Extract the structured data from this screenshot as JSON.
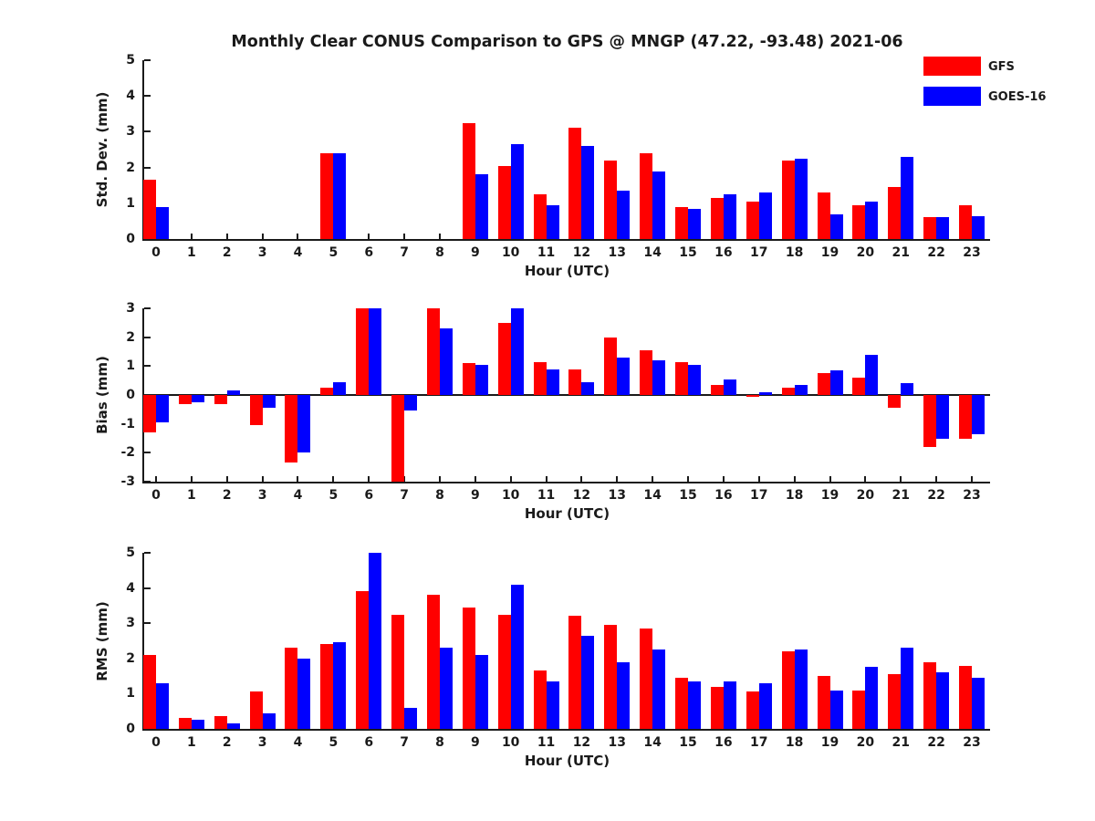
{
  "title": "Monthly Clear CONUS Comparison to GPS @ MNGP (47.22, -93.48) 2021-06",
  "legend": {
    "position": "top-right",
    "items": [
      {
        "label": "GFS",
        "color": "#ff0000"
      },
      {
        "label": "GOES-16",
        "color": "#0000ff"
      }
    ]
  },
  "chart_data": [
    {
      "type": "bar",
      "panel": "std-dev",
      "ylabel": "Std. Dev. (mm)",
      "xlabel": "Hour (UTC)",
      "ylim": [
        0,
        5
      ],
      "yticks": [
        0,
        1,
        2,
        3,
        4,
        5
      ],
      "grid": false,
      "categories": [
        0,
        1,
        2,
        3,
        4,
        5,
        6,
        7,
        8,
        9,
        10,
        11,
        12,
        13,
        14,
        15,
        16,
        17,
        18,
        19,
        20,
        21,
        22,
        23
      ],
      "series": [
        {
          "name": "GFS",
          "color": "#ff0000",
          "values": [
            1.65,
            0,
            0,
            0,
            0,
            2.4,
            0,
            0,
            0,
            3.25,
            2.05,
            1.25,
            3.1,
            2.2,
            2.4,
            0.9,
            1.15,
            1.05,
            2.2,
            1.3,
            0.95,
            1.45,
            0.6,
            0.95
          ]
        },
        {
          "name": "GOES-16",
          "color": "#0000ff",
          "values": [
            0.9,
            0,
            0,
            0,
            0,
            2.4,
            0,
            0,
            0,
            1.8,
            2.65,
            0.95,
            2.6,
            1.35,
            1.9,
            0.85,
            1.25,
            1.3,
            2.25,
            0.7,
            1.05,
            2.3,
            0.6,
            0.65
          ]
        }
      ]
    },
    {
      "type": "bar",
      "panel": "bias",
      "ylabel": "Bias (mm)",
      "xlabel": "Hour (UTC)",
      "ylim": [
        -3,
        3
      ],
      "yticks": [
        3,
        2,
        1,
        0,
        -1,
        -2,
        -3
      ],
      "grid": false,
      "categories": [
        0,
        1,
        2,
        3,
        4,
        5,
        6,
        7,
        8,
        9,
        10,
        11,
        12,
        13,
        14,
        15,
        16,
        17,
        18,
        19,
        20,
        21,
        22,
        23
      ],
      "series": [
        {
          "name": "GFS",
          "color": "#ff0000",
          "values": [
            -1.3,
            -0.3,
            -0.3,
            -1.05,
            -2.35,
            0.25,
            3.0,
            -3.0,
            3.0,
            1.1,
            2.5,
            1.15,
            0.9,
            2.0,
            1.55,
            1.15,
            0.35,
            -0.07,
            0.25,
            0.75,
            0.6,
            -0.45,
            -1.8,
            -1.5
          ]
        },
        {
          "name": "GOES-16",
          "color": "#0000ff",
          "values": [
            -0.95,
            -0.25,
            0.15,
            -0.45,
            -2.0,
            0.45,
            3.0,
            -0.55,
            2.3,
            1.05,
            3.0,
            0.9,
            0.45,
            1.3,
            1.2,
            1.05,
            0.55,
            0.1,
            0.35,
            0.85,
            1.4,
            0.4,
            -1.5,
            -1.35
          ]
        }
      ]
    },
    {
      "type": "bar",
      "panel": "rms",
      "ylabel": "RMS (mm)",
      "xlabel": "Hour (UTC)",
      "ylim": [
        0,
        5
      ],
      "yticks": [
        0,
        1,
        2,
        3,
        4,
        5
      ],
      "grid": false,
      "categories": [
        0,
        1,
        2,
        3,
        4,
        5,
        6,
        7,
        8,
        9,
        10,
        11,
        12,
        13,
        14,
        15,
        16,
        17,
        18,
        19,
        20,
        21,
        22,
        23
      ],
      "series": [
        {
          "name": "GFS",
          "color": "#ff0000",
          "values": [
            2.1,
            0.3,
            0.35,
            1.05,
            2.3,
            2.4,
            3.9,
            3.25,
            3.8,
            3.45,
            3.25,
            1.65,
            3.2,
            2.95,
            2.85,
            1.45,
            1.2,
            1.05,
            2.2,
            1.5,
            1.1,
            1.55,
            1.9,
            1.8
          ]
        },
        {
          "name": "GOES-16",
          "color": "#0000ff",
          "values": [
            1.3,
            0.25,
            0.15,
            0.45,
            2.0,
            2.45,
            5.0,
            0.6,
            2.3,
            2.1,
            4.1,
            1.35,
            2.65,
            1.9,
            2.25,
            1.35,
            1.35,
            1.3,
            2.25,
            1.1,
            1.75,
            2.3,
            1.6,
            1.45
          ]
        }
      ]
    }
  ]
}
